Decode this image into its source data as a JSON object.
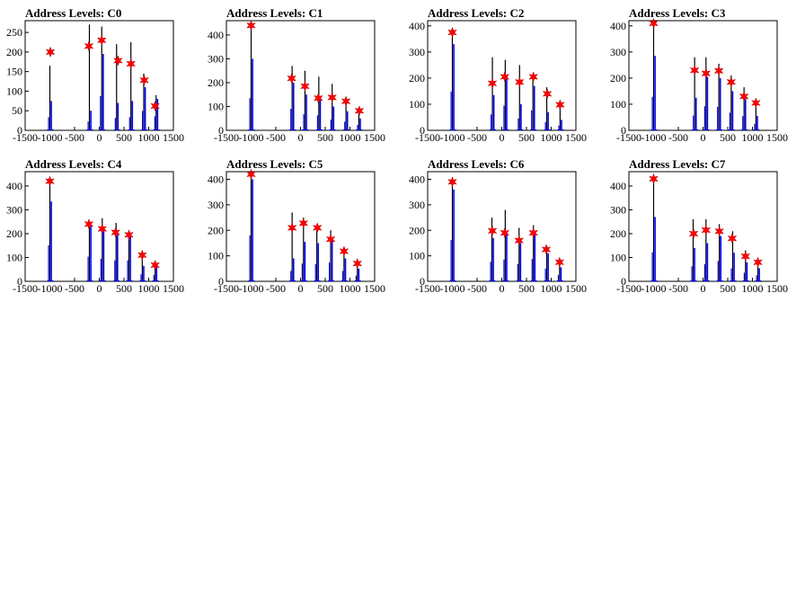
{
  "colors": {
    "histogram": "#0000ff",
    "outline": "#000000",
    "marker": "#ff0000",
    "background": "#ffffff"
  },
  "chart_data": [
    {
      "type": "bar",
      "title": "Address Levels: C0",
      "xlim": [
        -1500,
        1500
      ],
      "ylim": [
        0,
        280
      ],
      "xticks": [
        -1500,
        -1000,
        -500,
        0,
        500,
        1000,
        1500
      ],
      "xtick_labels": [
        "-1500",
        "-1000",
        "-500",
        "0",
        "500",
        "1000",
        "1500"
      ],
      "yticks": [
        0,
        50,
        100,
        150,
        200,
        250
      ],
      "ytick_labels": [
        "0",
        "50",
        "100",
        "150",
        "200",
        "250"
      ],
      "spikes": [
        {
          "x": -1000,
          "values": [
            75,
            165
          ]
        },
        {
          "x": -200,
          "values": [
            50,
            270
          ]
        },
        {
          "x": 50,
          "values": [
            195,
            265
          ]
        },
        {
          "x": 350,
          "values": [
            70,
            220
          ]
        },
        {
          "x": 640,
          "values": [
            75,
            225
          ]
        },
        {
          "x": 900,
          "values": [
            110,
            145
          ]
        },
        {
          "x": 1150,
          "values": [
            80,
            90
          ]
        }
      ],
      "peaks": [
        {
          "x": -990,
          "y": 200
        },
        {
          "x": -210,
          "y": 215
        },
        {
          "x": 50,
          "y": 230
        },
        {
          "x": 380,
          "y": 178
        },
        {
          "x": 640,
          "y": 170
        },
        {
          "x": 910,
          "y": 128
        },
        {
          "x": 1130,
          "y": 62
        }
      ]
    },
    {
      "type": "bar",
      "title": "Address Levels: C1",
      "xlim": [
        -1500,
        1500
      ],
      "ylim": [
        0,
        460
      ],
      "xticks": [
        -1500,
        -1000,
        -500,
        0,
        500,
        1000,
        1500
      ],
      "xtick_labels": [
        "-1500",
        "-1000",
        "-500",
        "0",
        "500",
        "1000",
        "1500"
      ],
      "yticks": [
        0,
        100,
        200,
        300,
        400
      ],
      "ytick_labels": [
        "0",
        "100",
        "200",
        "300",
        "400"
      ],
      "spikes": [
        {
          "x": -1000,
          "values": [
            300,
            440
          ]
        },
        {
          "x": -170,
          "values": [
            200,
            270
          ]
        },
        {
          "x": 90,
          "values": [
            150,
            250
          ]
        },
        {
          "x": 370,
          "values": [
            140,
            225
          ]
        },
        {
          "x": 640,
          "values": [
            100,
            195
          ]
        },
        {
          "x": 920,
          "values": [
            80,
            135
          ]
        },
        {
          "x": 1180,
          "values": [
            50,
            95
          ]
        }
      ],
      "peaks": [
        {
          "x": -1000,
          "y": 440
        },
        {
          "x": -180,
          "y": 218
        },
        {
          "x": 90,
          "y": 185
        },
        {
          "x": 360,
          "y": 135
        },
        {
          "x": 640,
          "y": 138
        },
        {
          "x": 920,
          "y": 122
        },
        {
          "x": 1190,
          "y": 82
        }
      ]
    },
    {
      "type": "bar",
      "title": "Address Levels: C2",
      "xlim": [
        -1500,
        1500
      ],
      "ylim": [
        0,
        420
      ],
      "xticks": [
        -1500,
        -1000,
        -500,
        0,
        500,
        1000,
        1500
      ],
      "xtick_labels": [
        "-1500",
        "-1000",
        "-500",
        "0",
        "500",
        "1000",
        "1500"
      ],
      "yticks": [
        0,
        100,
        200,
        300,
        400
      ],
      "ytick_labels": [
        "0",
        "100",
        "200",
        "300",
        "400"
      ],
      "spikes": [
        {
          "x": -1000,
          "values": [
            330,
            390
          ]
        },
        {
          "x": -190,
          "values": [
            135,
            280
          ]
        },
        {
          "x": 70,
          "values": [
            210,
            270
          ]
        },
        {
          "x": 360,
          "values": [
            100,
            250
          ]
        },
        {
          "x": 630,
          "values": [
            170,
            210
          ]
        },
        {
          "x": 910,
          "values": [
            70,
            165
          ]
        },
        {
          "x": 1180,
          "values": [
            40,
            110
          ]
        }
      ],
      "peaks": [
        {
          "x": -1000,
          "y": 375
        },
        {
          "x": -190,
          "y": 180
        },
        {
          "x": 60,
          "y": 205
        },
        {
          "x": 360,
          "y": 185
        },
        {
          "x": 640,
          "y": 205
        },
        {
          "x": 920,
          "y": 140
        },
        {
          "x": 1180,
          "y": 98
        }
      ]
    },
    {
      "type": "bar",
      "title": "Address Levels: C3",
      "xlim": [
        -1500,
        1500
      ],
      "ylim": [
        0,
        420
      ],
      "xticks": [
        -1500,
        -1000,
        -500,
        0,
        500,
        1000,
        1500
      ],
      "xtick_labels": [
        "-1500",
        "-1000",
        "-500",
        "0",
        "500",
        "1000",
        "1500"
      ],
      "yticks": [
        0,
        100,
        200,
        300,
        400
      ],
      "ytick_labels": [
        "0",
        "100",
        "200",
        "300",
        "400"
      ],
      "spikes": [
        {
          "x": -1000,
          "values": [
            285,
            420
          ]
        },
        {
          "x": -170,
          "values": [
            125,
            280
          ]
        },
        {
          "x": 60,
          "values": [
            205,
            280
          ]
        },
        {
          "x": 320,
          "values": [
            200,
            255
          ]
        },
        {
          "x": 570,
          "values": [
            150,
            210
          ]
        },
        {
          "x": 830,
          "values": [
            120,
            165
          ]
        },
        {
          "x": 1070,
          "values": [
            55,
            110
          ]
        }
      ],
      "peaks": [
        {
          "x": -1000,
          "y": 410
        },
        {
          "x": -170,
          "y": 230
        },
        {
          "x": 60,
          "y": 218
        },
        {
          "x": 320,
          "y": 228
        },
        {
          "x": 570,
          "y": 185
        },
        {
          "x": 830,
          "y": 130
        },
        {
          "x": 1070,
          "y": 105
        }
      ]
    },
    {
      "type": "bar",
      "title": "Address Levels: C4",
      "xlim": [
        -1500,
        1500
      ],
      "ylim": [
        0,
        460
      ],
      "xticks": [
        -1500,
        -1000,
        -500,
        0,
        500,
        1000,
        1500
      ],
      "xtick_labels": [
        "-1500",
        "-1000",
        "-500",
        "0",
        "500",
        "1000",
        "1500"
      ],
      "yticks": [
        0,
        100,
        200,
        300,
        400
      ],
      "ytick_labels": [
        "0",
        "100",
        "200",
        "300",
        "400"
      ],
      "spikes": [
        {
          "x": -1000,
          "values": [
            335,
            430
          ]
        },
        {
          "x": -200,
          "values": [
            230,
            250
          ]
        },
        {
          "x": 60,
          "values": [
            210,
            265
          ]
        },
        {
          "x": 340,
          "values": [
            195,
            245
          ]
        },
        {
          "x": 600,
          "values": [
            195,
            205
          ]
        },
        {
          "x": 870,
          "values": [
            65,
            120
          ]
        },
        {
          "x": 1130,
          "values": [
            60,
            80
          ]
        }
      ],
      "peaks": [
        {
          "x": -1000,
          "y": 420
        },
        {
          "x": -210,
          "y": 240
        },
        {
          "x": 60,
          "y": 220
        },
        {
          "x": 330,
          "y": 205
        },
        {
          "x": 600,
          "y": 195
        },
        {
          "x": 870,
          "y": 110
        },
        {
          "x": 1130,
          "y": 68
        }
      ]
    },
    {
      "type": "bar",
      "title": "Address Levels: C5",
      "xlim": [
        -1500,
        1500
      ],
      "ylim": [
        0,
        430
      ],
      "xticks": [
        -1500,
        -1000,
        -500,
        0,
        500,
        1000,
        1500
      ],
      "xtick_labels": [
        "-1500",
        "-1000",
        "-500",
        "0",
        "500",
        "1000",
        "1500"
      ],
      "yticks": [
        0,
        100,
        200,
        300,
        400
      ],
      "ytick_labels": [
        "0",
        "100",
        "200",
        "300",
        "400"
      ],
      "spikes": [
        {
          "x": -1000,
          "values": [
            400,
            420
          ]
        },
        {
          "x": -170,
          "values": [
            90,
            270
          ]
        },
        {
          "x": 60,
          "values": [
            155,
            250
          ]
        },
        {
          "x": 330,
          "values": [
            150,
            200
          ]
        },
        {
          "x": 610,
          "values": [
            165,
            200
          ]
        },
        {
          "x": 880,
          "values": [
            90,
            130
          ]
        },
        {
          "x": 1150,
          "values": [
            50,
            80
          ]
        }
      ],
      "peaks": [
        {
          "x": -1000,
          "y": 420
        },
        {
          "x": -170,
          "y": 210
        },
        {
          "x": 60,
          "y": 228
        },
        {
          "x": 340,
          "y": 210
        },
        {
          "x": 610,
          "y": 165
        },
        {
          "x": 880,
          "y": 118
        },
        {
          "x": 1150,
          "y": 70
        }
      ]
    },
    {
      "type": "bar",
      "title": "Address Levels: C6",
      "xlim": [
        -1500,
        1500
      ],
      "ylim": [
        0,
        430
      ],
      "xticks": [
        -1500,
        -1000,
        -500,
        0,
        500,
        1000,
        1500
      ],
      "xtick_labels": [
        "-1500",
        "-1000",
        "-500",
        "0",
        "500",
        "1000",
        "1500"
      ],
      "yticks": [
        0,
        100,
        200,
        300,
        400
      ],
      "ytick_labels": [
        "0",
        "100",
        "200",
        "300",
        "400"
      ],
      "spikes": [
        {
          "x": -1000,
          "values": [
            360,
            400
          ]
        },
        {
          "x": -200,
          "values": [
            170,
            250
          ]
        },
        {
          "x": 70,
          "values": [
            190,
            280
          ]
        },
        {
          "x": 350,
          "values": [
            150,
            210
          ]
        },
        {
          "x": 640,
          "values": [
            195,
            220
          ]
        },
        {
          "x": 910,
          "values": [
            110,
            140
          ]
        },
        {
          "x": 1170,
          "values": [
            55,
            90
          ]
        }
      ],
      "peaks": [
        {
          "x": -1000,
          "y": 390
        },
        {
          "x": -190,
          "y": 198
        },
        {
          "x": 60,
          "y": 190
        },
        {
          "x": 350,
          "y": 160
        },
        {
          "x": 640,
          "y": 190
        },
        {
          "x": 900,
          "y": 125
        },
        {
          "x": 1170,
          "y": 75
        }
      ]
    },
    {
      "type": "bar",
      "title": "Address Levels: C7",
      "xlim": [
        -1500,
        1500
      ],
      "ylim": [
        0,
        460
      ],
      "xticks": [
        -1500,
        -1000,
        -500,
        0,
        500,
        1000,
        1500
      ],
      "xtick_labels": [
        "-1500",
        "-1000",
        "-500",
        "0",
        "500",
        "1000",
        "1500"
      ],
      "yticks": [
        0,
        100,
        200,
        300,
        400
      ],
      "ytick_labels": [
        "0",
        "100",
        "200",
        "300",
        "400"
      ],
      "spikes": [
        {
          "x": -1000,
          "values": [
            270,
            440
          ]
        },
        {
          "x": -200,
          "values": [
            140,
            260
          ]
        },
        {
          "x": 60,
          "values": [
            160,
            260
          ]
        },
        {
          "x": 330,
          "values": [
            190,
            240
          ]
        },
        {
          "x": 600,
          "values": [
            120,
            210
          ]
        },
        {
          "x": 860,
          "values": [
            80,
            130
          ]
        },
        {
          "x": 1110,
          "values": [
            55,
            90
          ]
        }
      ],
      "peaks": [
        {
          "x": -1000,
          "y": 430
        },
        {
          "x": -190,
          "y": 200
        },
        {
          "x": 60,
          "y": 215
        },
        {
          "x": 330,
          "y": 210
        },
        {
          "x": 590,
          "y": 180
        },
        {
          "x": 860,
          "y": 105
        },
        {
          "x": 1110,
          "y": 80
        }
      ]
    }
  ]
}
